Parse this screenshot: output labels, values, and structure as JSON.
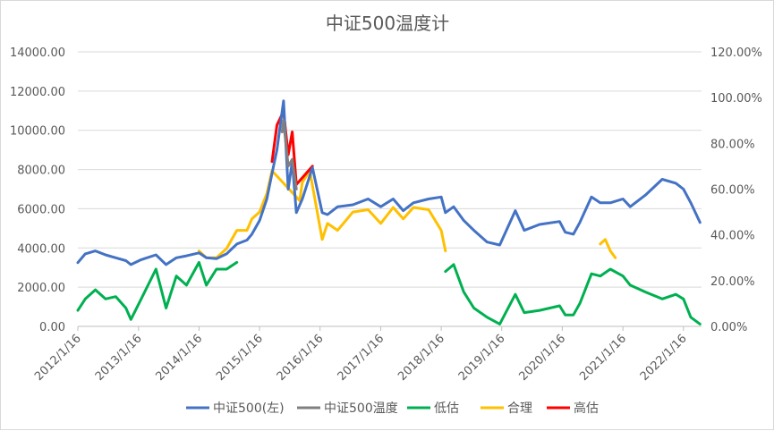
{
  "chart_data": {
    "type": "line",
    "title": "中证500温度计",
    "x_ticks": [
      "2012/1/16",
      "2013/1/16",
      "2014/1/16",
      "2015/1/16",
      "2016/1/16",
      "2017/1/16",
      "2018/1/16",
      "2019/1/16",
      "2020/1/16",
      "2021/1/16",
      "2022/1/16"
    ],
    "y_left": {
      "min": 0,
      "max": 14000,
      "step": 2000,
      "ticks": [
        "0.00",
        "2000.00",
        "4000.00",
        "6000.00",
        "8000.00",
        "10000.00",
        "12000.00",
        "14000.00"
      ]
    },
    "y_right": {
      "min": 0,
      "max": 1.2,
      "step": 0.2,
      "ticks": [
        "0.00%",
        "20.00%",
        "40.00%",
        "60.00%",
        "80.00%",
        "100.00%",
        "120.00%"
      ]
    },
    "grid": true,
    "legend_position": "bottom",
    "series": [
      {
        "name": "中证500(左)",
        "color": "#4472c4",
        "axis": "left",
        "points": [
          [
            "2012/1/16",
            3250
          ],
          [
            "2012/3/1",
            3700
          ],
          [
            "2012/5/1",
            3850
          ],
          [
            "2012/7/1",
            3650
          ],
          [
            "2012/9/1",
            3500
          ],
          [
            "2012/11/1",
            3350
          ],
          [
            "2012/12/1",
            3150
          ],
          [
            "2013/2/1",
            3400
          ],
          [
            "2013/5/1",
            3650
          ],
          [
            "2013/7/1",
            3150
          ],
          [
            "2013/9/1",
            3500
          ],
          [
            "2013/11/1",
            3600
          ],
          [
            "2014/1/16",
            3750
          ],
          [
            "2014/3/1",
            3500
          ],
          [
            "2014/5/1",
            3450
          ],
          [
            "2014/7/1",
            3700
          ],
          [
            "2014/9/1",
            4200
          ],
          [
            "2014/11/1",
            4400
          ],
          [
            "2014/12/1",
            4700
          ],
          [
            "2015/1/16",
            5400
          ],
          [
            "2015/3/1",
            6500
          ],
          [
            "2015/4/1",
            7800
          ],
          [
            "2015/5/1",
            9000
          ],
          [
            "2015/6/10",
            11500
          ],
          [
            "2015/7/8",
            7000
          ],
          [
            "2015/8/1",
            8400
          ],
          [
            "2015/8/26",
            5800
          ],
          [
            "2015/10/1",
            6500
          ],
          [
            "2015/12/1",
            8100
          ],
          [
            "2016/1/29",
            5800
          ],
          [
            "2016/3/1",
            5700
          ],
          [
            "2016/5/1",
            6100
          ],
          [
            "2016/8/1",
            6200
          ],
          [
            "2016/11/1",
            6500
          ],
          [
            "2017/1/16",
            6100
          ],
          [
            "2017/4/1",
            6500
          ],
          [
            "2017/6/1",
            5900
          ],
          [
            "2017/8/1",
            6300
          ],
          [
            "2017/11/1",
            6500
          ],
          [
            "2018/1/16",
            6600
          ],
          [
            "2018/2/10",
            5800
          ],
          [
            "2018/4/1",
            6100
          ],
          [
            "2018/6/1",
            5400
          ],
          [
            "2018/8/1",
            4900
          ],
          [
            "2018/10/20",
            4300
          ],
          [
            "2019/1/4",
            4150
          ],
          [
            "2019/4/8",
            5900
          ],
          [
            "2019/6/1",
            4900
          ],
          [
            "2019/9/1",
            5200
          ],
          [
            "2019/12/31",
            5350
          ],
          [
            "2020/2/3",
            4800
          ],
          [
            "2020/3/23",
            4700
          ],
          [
            "2020/5/1",
            5300
          ],
          [
            "2020/7/10",
            6600
          ],
          [
            "2020/9/1",
            6300
          ],
          [
            "2020/11/1",
            6300
          ],
          [
            "2021/1/16",
            6500
          ],
          [
            "2021/3/1",
            6100
          ],
          [
            "2021/6/1",
            6700
          ],
          [
            "2021/9/10",
            7500
          ],
          [
            "2021/12/1",
            7300
          ],
          [
            "2022/1/16",
            7000
          ],
          [
            "2022/3/1",
            6300
          ],
          [
            "2022/4/26",
            5300
          ]
        ]
      },
      {
        "name": "中证500温度",
        "color": "#808080",
        "axis": "right",
        "points": [
          [
            "2015/6/1",
            0.85
          ],
          [
            "2015/6/10",
            0.9
          ],
          [
            "2015/7/8",
            0.7
          ],
          [
            "2015/8/1",
            0.73
          ],
          [
            "2015/8/26",
            0.6
          ]
        ]
      },
      {
        "name": "低估",
        "color": "#00b050",
        "axis": "right",
        "points": [
          [
            "2012/1/16",
            0.07
          ],
          [
            "2012/3/1",
            0.12
          ],
          [
            "2012/5/1",
            0.16
          ],
          [
            "2012/7/1",
            0.12
          ],
          [
            "2012/9/1",
            0.13
          ],
          [
            "2012/11/1",
            0.08
          ],
          [
            "2012/12/1",
            0.03
          ],
          [
            "2013/2/1",
            0.12
          ],
          [
            "2013/5/1",
            0.25
          ],
          [
            "2013/7/1",
            0.08
          ],
          [
            "2013/9/1",
            0.22
          ],
          [
            "2013/11/1",
            0.18
          ],
          [
            "2014/1/16",
            0.28
          ],
          [
            "2014/3/1",
            0.18
          ],
          [
            "2014/5/1",
            0.25
          ],
          [
            "2014/7/1",
            0.25
          ],
          [
            "2014/9/1",
            0.28
          ],
          [
            "2018/2/10",
            0.24
          ],
          [
            "2018/4/1",
            0.27
          ],
          [
            "2018/6/1",
            0.15
          ],
          [
            "2018/8/1",
            0.08
          ],
          [
            "2018/10/20",
            0.04
          ],
          [
            "2019/1/4",
            0.01
          ],
          [
            "2019/4/8",
            0.14
          ],
          [
            "2019/6/1",
            0.06
          ],
          [
            "2019/9/1",
            0.07
          ],
          [
            "2019/12/31",
            0.09
          ],
          [
            "2020/2/3",
            0.05
          ],
          [
            "2020/3/23",
            0.05
          ],
          [
            "2020/5/1",
            0.1
          ],
          [
            "2020/7/10",
            0.23
          ],
          [
            "2020/9/1",
            0.22
          ],
          [
            "2020/11/1",
            0.25
          ],
          [
            "2021/1/16",
            0.22
          ],
          [
            "2021/3/1",
            0.18
          ],
          [
            "2021/6/1",
            0.15
          ],
          [
            "2021/9/10",
            0.12
          ],
          [
            "2021/12/1",
            0.14
          ],
          [
            "2022/1/16",
            0.12
          ],
          [
            "2022/3/1",
            0.04
          ],
          [
            "2022/4/26",
            0.01
          ]
        ]
      },
      {
        "name": "合理",
        "color": "#ffc000",
        "axis": "right",
        "points": [
          [
            "2014/1/16",
            0.33
          ],
          [
            "2014/3/1",
            0.3
          ],
          [
            "2014/5/1",
            0.3
          ],
          [
            "2014/7/1",
            0.34
          ],
          [
            "2014/9/1",
            0.42
          ],
          [
            "2014/11/1",
            0.42
          ],
          [
            "2014/12/1",
            0.47
          ],
          [
            "2015/1/16",
            0.5
          ],
          [
            "2015/3/1",
            0.58
          ],
          [
            "2015/4/1",
            0.68
          ],
          [
            "2015/9/15",
            0.55
          ],
          [
            "2015/10/1",
            0.63
          ],
          [
            "2015/11/15",
            0.68
          ],
          [
            "2016/1/29",
            0.38
          ],
          [
            "2016/3/1",
            0.45
          ],
          [
            "2016/5/1",
            0.42
          ],
          [
            "2016/8/1",
            0.5
          ],
          [
            "2016/11/1",
            0.51
          ],
          [
            "2017/1/16",
            0.45
          ],
          [
            "2017/4/1",
            0.52
          ],
          [
            "2017/6/1",
            0.47
          ],
          [
            "2017/8/1",
            0.52
          ],
          [
            "2017/11/1",
            0.51
          ],
          [
            "2018/1/16",
            0.42
          ],
          [
            "2018/2/10",
            0.33
          ],
          [
            "2020/9/1",
            0.36
          ],
          [
            "2020/10/1",
            0.38
          ],
          [
            "2020/11/1",
            0.33
          ],
          [
            "2020/12/1",
            0.3
          ]
        ]
      },
      {
        "name": "高估",
        "color": "#ff0000",
        "axis": "right",
        "points": [
          [
            "2015/4/1",
            0.72
          ],
          [
            "2015/5/1",
            0.88
          ],
          [
            "2015/6/10",
            0.94
          ],
          [
            "2015/7/8",
            0.75
          ],
          [
            "2015/8/1",
            0.85
          ],
          [
            "2015/8/26",
            0.62
          ],
          [
            "2015/12/1",
            0.7
          ]
        ]
      }
    ]
  }
}
